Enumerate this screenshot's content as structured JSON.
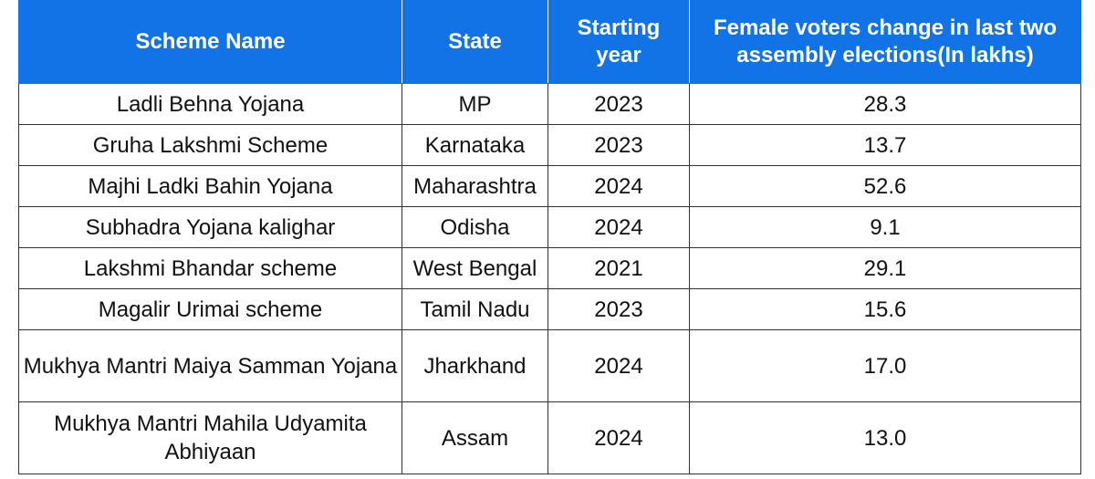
{
  "table": {
    "headers": {
      "scheme_name": "Scheme Name",
      "state": "State",
      "starting_year": "Starting year",
      "female_voters_change": "Female voters change in last two assembly elections(In lakhs)"
    },
    "rows": [
      {
        "scheme": "Ladli Behna Yojana",
        "state": "MP",
        "year": "2023",
        "change": "28.3"
      },
      {
        "scheme": "Gruha Lakshmi Scheme",
        "state": "Karnataka",
        "year": "2023",
        "change": "13.7"
      },
      {
        "scheme": "Majhi Ladki Bahin Yojana",
        "state": "Maharashtra",
        "year": "2024",
        "change": "52.6"
      },
      {
        "scheme": "Subhadra Yojana kalighar",
        "state": "Odisha",
        "year": "2024",
        "change": "9.1"
      },
      {
        "scheme": "Lakshmi Bhandar scheme",
        "state": "West Bengal",
        "year": "2021",
        "change": "29.1"
      },
      {
        "scheme": "Magalir Urimai scheme",
        "state": "Tamil Nadu",
        "year": "2023",
        "change": "15.6"
      },
      {
        "scheme": "Mukhya Mantri Maiya Samman Yojana",
        "state": "Jharkhand",
        "year": "2024",
        "change": "17.0"
      },
      {
        "scheme": "Mukhya Mantri Mahila Udyamita Abhiyaan",
        "state": "Assam",
        "year": "2024",
        "change": "13.0"
      }
    ],
    "colors": {
      "header_background": "#1273e6",
      "header_text": "#ffffff",
      "border": "#333333"
    }
  }
}
